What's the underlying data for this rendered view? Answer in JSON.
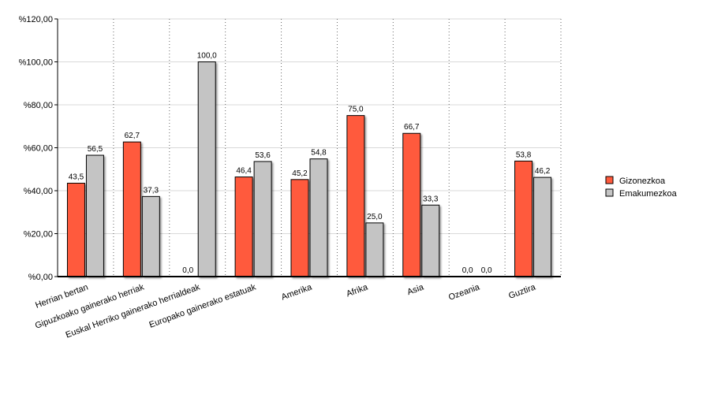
{
  "chart_data": {
    "type": "bar",
    "categories": [
      "Herrian bertan",
      "Gipuzkoako gainerako herriak",
      "Euskal Herriko gainerako herrialdeak",
      "Europako gainerako estatuak",
      "Amerika",
      "Afrika",
      "Asia",
      "Ozeania",
      "Guztira"
    ],
    "series": [
      {
        "name": "Gizonezkoa",
        "color": "#ff5a3c",
        "values": [
          43.5,
          62.7,
          0.0,
          46.4,
          45.2,
          75.0,
          66.7,
          0.0,
          53.8
        ],
        "labels": [
          "43,5",
          "62,7",
          "0,0",
          "46,4",
          "45,2",
          "75,0",
          "66,7",
          "0,0",
          "53,8"
        ]
      },
      {
        "name": "Emakumezkoa",
        "color": "#c4c4c4",
        "values": [
          56.5,
          37.3,
          100.0,
          53.6,
          54.8,
          25.0,
          33.3,
          0.0,
          46.2
        ],
        "labels": [
          "56,5",
          "37,3",
          "100,0",
          "53,6",
          "54,8",
          "25,0",
          "33,3",
          "0,0",
          "46,2"
        ]
      }
    ],
    "title": "",
    "xlabel": "",
    "ylabel": "",
    "ylim": [
      0,
      120
    ],
    "yticks": [
      0,
      20,
      40,
      60,
      80,
      100,
      120
    ],
    "ytick_labels": [
      "%0,00",
      "%20,00",
      "%40,00",
      "%60,00",
      "%80,00",
      "%100,00",
      "%120,00"
    ],
    "grid": true,
    "legend_position": "right"
  }
}
